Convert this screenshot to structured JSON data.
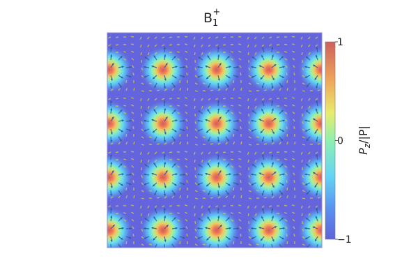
{
  "chart_data": {
    "type": "heatmap",
    "title": "B",
    "title_subscript": "1",
    "title_superscript": "+",
    "xlabel": "",
    "ylabel": "",
    "colorbar": {
      "label_main": "P",
      "label_sub": "z",
      "label_rest": "/|P|",
      "range": [
        -1,
        1
      ],
      "ticks": [
        {
          "value": 1,
          "label": "1"
        },
        {
          "value": 0,
          "label": "0"
        },
        {
          "value": -1,
          "label": "−1"
        }
      ],
      "colormap": "jet-alpha",
      "placement": "right"
    },
    "skyrmion_lattice": {
      "columns": 5,
      "rows": 4,
      "core_value": 1,
      "background_value": -1,
      "vector_overlay": true
    },
    "grid": false
  },
  "colors": {
    "background": "#ffffff",
    "field_base": "#6464dc",
    "arrow_bg": "#d8d040",
    "arrow_core": "#2a5fa0"
  }
}
